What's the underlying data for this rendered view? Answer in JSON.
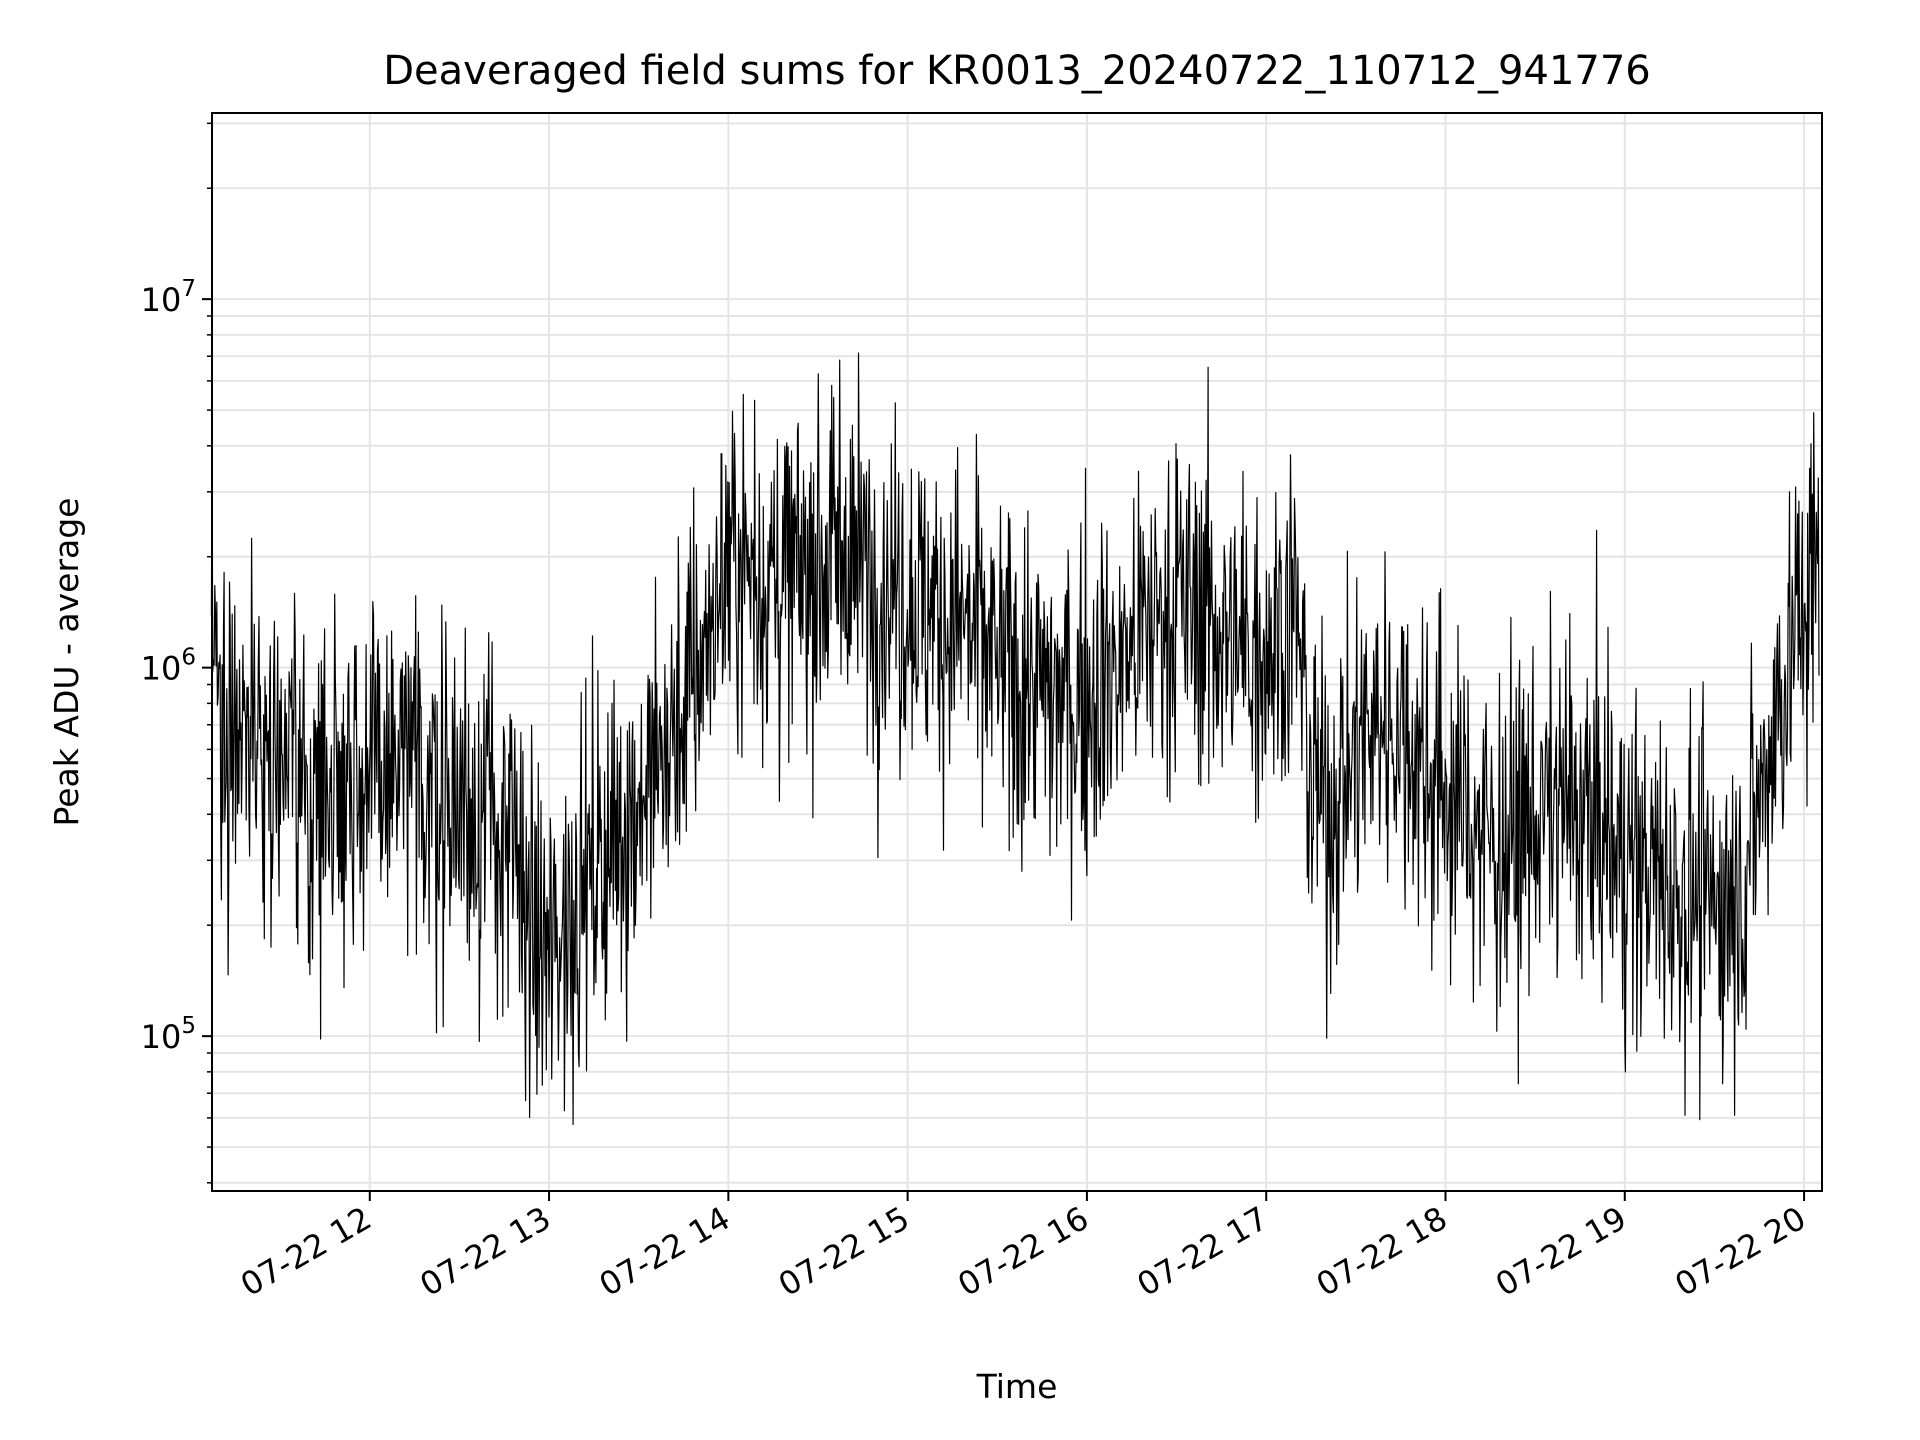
{
  "chart_data": {
    "type": "line",
    "title": "Deaveraged field sums for KR0013_20240722_110712_941776",
    "xlabel": "Time",
    "ylabel": "Peak ADU - average",
    "yscale": "log",
    "ylim": [
      38000,
      32000000
    ],
    "xlim": [
      "2024-07-22 11:07:12",
      "2024-07-22 20:06:00"
    ],
    "grid": true,
    "legend": "none",
    "line_color": "#000000",
    "x_ticks": [
      "07-22 12",
      "07-22 13",
      "07-22 14",
      "07-22 15",
      "07-22 16",
      "07-22 17",
      "07-22 18",
      "07-22 19",
      "07-22 20"
    ],
    "y_ticks": [
      {
        "value": 100000,
        "base": "10",
        "exp": "5"
      },
      {
        "value": 1000000,
        "base": "10",
        "exp": "6"
      },
      {
        "value": 10000000,
        "base": "10",
        "exp": "7"
      }
    ],
    "series": [
      {
        "values": [
          [
            "2024-07-22 11:07",
            1100000
          ],
          [
            "2024-07-22 11:10",
            900000
          ],
          [
            "2024-07-22 11:12",
            600000
          ],
          [
            "2024-07-22 11:15",
            800000
          ],
          [
            "2024-07-22 11:20",
            700000
          ],
          [
            "2024-07-22 11:30",
            600000
          ],
          [
            "2024-07-22 11:40",
            420000
          ],
          [
            "2024-07-22 11:50",
            550000
          ],
          [
            "2024-07-22 12:00",
            500000
          ],
          [
            "2024-07-22 12:10",
            520000
          ],
          [
            "2024-07-22 12:20",
            480000
          ],
          [
            "2024-07-22 12:30",
            430000
          ],
          [
            "2024-07-22 12:40",
            400000
          ],
          [
            "2024-07-22 12:50",
            280000
          ],
          [
            "2024-07-22 12:55",
            180000
          ],
          [
            "2024-07-22 13:00",
            160000
          ],
          [
            "2024-07-22 13:10",
            250000
          ],
          [
            "2024-07-22 13:20",
            320000
          ],
          [
            "2024-07-22 13:30",
            450000
          ],
          [
            "2024-07-22 13:40",
            600000
          ],
          [
            "2024-07-22 13:50",
            1000000
          ],
          [
            "2024-07-22 14:00",
            2000000
          ],
          [
            "2024-07-22 14:10",
            1800000
          ],
          [
            "2024-07-22 14:20",
            1700000
          ],
          [
            "2024-07-22 14:30",
            1900000
          ],
          [
            "2024-07-22 14:40",
            2100000
          ],
          [
            "2024-07-22 14:50",
            1700000
          ],
          [
            "2024-07-22 15:00",
            1600000
          ],
          [
            "2024-07-22 15:10",
            1400000
          ],
          [
            "2024-07-22 15:20",
            1300000
          ],
          [
            "2024-07-22 15:30",
            1000000
          ],
          [
            "2024-07-22 15:40",
            900000
          ],
          [
            "2024-07-22 15:50",
            800000
          ],
          [
            "2024-07-22 16:00",
            850000
          ],
          [
            "2024-07-22 16:10",
            1000000
          ],
          [
            "2024-07-22 16:20",
            1300000
          ],
          [
            "2024-07-22 16:30",
            1500000
          ],
          [
            "2024-07-22 16:40",
            1400000
          ],
          [
            "2024-07-22 16:50",
            1100000
          ],
          [
            "2024-07-22 17:00",
            1200000
          ],
          [
            "2024-07-22 17:10",
            1400000
          ],
          [
            "2024-07-22 17:15",
            500000
          ],
          [
            "2024-07-22 17:20",
            400000
          ],
          [
            "2024-07-22 17:30",
            600000
          ],
          [
            "2024-07-22 17:40",
            750000
          ],
          [
            "2024-07-22 17:50",
            600000
          ],
          [
            "2024-07-22 18:00",
            450000
          ],
          [
            "2024-07-22 18:10",
            380000
          ],
          [
            "2024-07-22 18:20",
            320000
          ],
          [
            "2024-07-22 18:30",
            400000
          ],
          [
            "2024-07-22 18:40",
            420000
          ],
          [
            "2024-07-22 18:50",
            380000
          ],
          [
            "2024-07-22 19:00",
            300000
          ],
          [
            "2024-07-22 19:10",
            270000
          ],
          [
            "2024-07-22 19:20",
            250000
          ],
          [
            "2024-07-22 19:30",
            220000
          ],
          [
            "2024-07-22 19:40",
            270000
          ],
          [
            "2024-07-22 19:50",
            700000
          ],
          [
            "2024-07-22 20:00",
            1500000
          ],
          [
            "2024-07-22 20:05",
            1800000
          ]
        ]
      }
    ]
  }
}
